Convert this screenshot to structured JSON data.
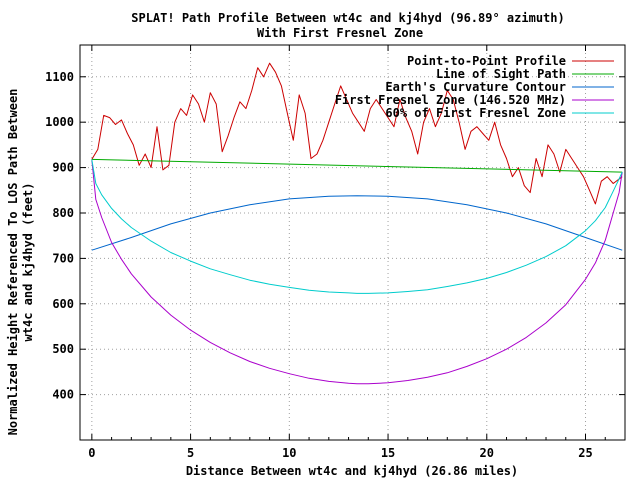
{
  "chart_data": {
    "type": "line",
    "title": "SPLAT! Path Profile Between wt4c and kj4hyd (96.89° azimuth)",
    "subtitle": "With First Fresnel Zone",
    "xlabel": "Distance Between wt4c and kj4hyd (26.86 miles)",
    "ylabel_line1": "Normalized Height Referenced To LOS Path Between",
    "ylabel_line2": "wt4c and kj4hyd (feet)",
    "xlim": [
      -0.6,
      27
    ],
    "ylim": [
      300,
      1170
    ],
    "xticks": [
      "0",
      "5",
      "10",
      "15",
      "20",
      "25"
    ],
    "xtick_values": [
      0,
      5,
      10,
      15,
      20,
      25
    ],
    "yticks": [
      "400",
      "500",
      "600",
      "700",
      "800",
      "900",
      "1000",
      "1100"
    ],
    "ytick_values": [
      400,
      500,
      600,
      700,
      800,
      900,
      1000,
      1100
    ],
    "grid": true,
    "legend_position": "top-right",
    "series": [
      {
        "name": "Point-to-Point Profile",
        "color": "#cc0000",
        "x": [
          0,
          0.3,
          0.6,
          0.9,
          1.2,
          1.5,
          1.8,
          2.1,
          2.4,
          2.7,
          3.0,
          3.3,
          3.6,
          3.9,
          4.2,
          4.5,
          4.8,
          5.1,
          5.4,
          5.7,
          6.0,
          6.3,
          6.6,
          6.9,
          7.2,
          7.5,
          7.8,
          8.1,
          8.4,
          8.7,
          9.0,
          9.3,
          9.6,
          9.9,
          10.2,
          10.5,
          10.8,
          11.1,
          11.4,
          11.7,
          12.0,
          12.3,
          12.6,
          12.9,
          13.2,
          13.5,
          13.8,
          14.1,
          14.4,
          14.7,
          15.0,
          15.3,
          15.6,
          15.9,
          16.2,
          16.5,
          16.8,
          17.1,
          17.4,
          17.7,
          18.0,
          18.3,
          18.6,
          18.9,
          19.2,
          19.5,
          19.8,
          20.1,
          20.4,
          20.7,
          21.0,
          21.3,
          21.6,
          21.9,
          22.2,
          22.5,
          22.8,
          23.1,
          23.4,
          23.7,
          24.0,
          24.3,
          24.6,
          24.9,
          25.2,
          25.5,
          25.8,
          26.1,
          26.4,
          26.86
        ],
        "values": [
          918,
          940,
          1015,
          1010,
          995,
          1005,
          975,
          950,
          905,
          930,
          900,
          990,
          895,
          905,
          1000,
          1030,
          1015,
          1060,
          1040,
          1000,
          1065,
          1040,
          935,
          970,
          1010,
          1045,
          1030,
          1070,
          1120,
          1100,
          1130,
          1110,
          1080,
          1020,
          960,
          1060,
          1020,
          920,
          930,
          960,
          1000,
          1040,
          1080,
          1050,
          1020,
          1000,
          980,
          1030,
          1050,
          1030,
          1010,
          990,
          1050,
          1010,
          980,
          930,
          1000,
          1030,
          990,
          1020,
          1070,
          1050,
          1000,
          940,
          980,
          990,
          975,
          960,
          1000,
          950,
          920,
          880,
          900,
          860,
          845,
          920,
          880,
          950,
          930,
          890,
          940,
          920,
          900,
          880,
          850,
          820,
          870,
          880,
          865,
          880
        ]
      },
      {
        "name": "Line of Sight Path",
        "color": "#00aa00",
        "x": [
          0,
          26.86
        ],
        "values": [
          918,
          890
        ]
      },
      {
        "name": "Earth's Curvature Contour",
        "color": "#0066cc",
        "x": [
          0,
          2,
          4,
          6,
          8,
          10,
          12,
          13.43,
          15,
          17,
          19,
          21,
          23,
          25,
          26.86
        ],
        "values": [
          718,
          746,
          776,
          800,
          818,
          831,
          837,
          838,
          837,
          831,
          818,
          800,
          776,
          746,
          718
        ]
      },
      {
        "name": "First Fresnel Zone (146.520 MHz)",
        "color": "#aa00cc",
        "x": [
          0,
          0.2,
          0.5,
          1,
          1.5,
          2,
          3,
          4,
          5,
          6,
          7,
          8,
          9,
          10,
          11,
          12,
          13,
          13.43,
          14,
          15,
          16,
          17,
          18,
          19,
          20,
          21,
          22,
          23,
          24,
          25,
          25.5,
          26,
          26.4,
          26.7,
          26.86
        ],
        "values": [
          918,
          830,
          790,
          735,
          698,
          666,
          615,
          575,
          542,
          515,
          492,
          473,
          458,
          446,
          436,
          429,
          425,
          424,
          424,
          426,
          431,
          438,
          448,
          462,
          479,
          500,
          526,
          558,
          598,
          654,
          690,
          740,
          800,
          845,
          890
        ]
      },
      {
        "name": "60% of First Fresnel Zone",
        "color": "#00cccc",
        "x": [
          0,
          0.2,
          0.5,
          1,
          1.5,
          2,
          3,
          4,
          5,
          6,
          7,
          8,
          9,
          10,
          11,
          12,
          13,
          13.43,
          14,
          15,
          16,
          17,
          18,
          19,
          20,
          21,
          22,
          23,
          24,
          25,
          25.5,
          26,
          26.4,
          26.7,
          26.86
        ],
        "values": [
          918,
          865,
          840,
          810,
          787,
          768,
          738,
          713,
          694,
          677,
          664,
          652,
          643,
          636,
          630,
          626,
          624,
          623,
          623,
          624,
          627,
          631,
          638,
          646,
          656,
          669,
          685,
          704,
          728,
          761,
          783,
          812,
          848,
          875,
          890
        ]
      }
    ]
  }
}
